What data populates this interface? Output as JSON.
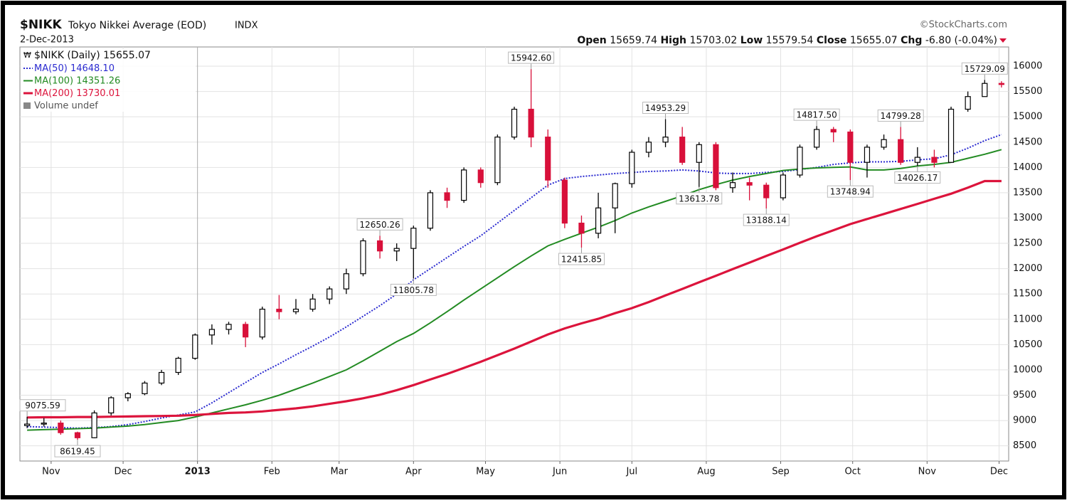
{
  "chart_data": {
    "type": "candlestick",
    "title": "$NIKK",
    "subtitle": "Tokyo Nikkei Average (EOD)",
    "exchange": "INDX",
    "date": "2-Dec-2013",
    "source": "©StockCharts.com",
    "ohlc_labels": [
      "Open",
      "High",
      "Low",
      "Close",
      "Chg"
    ],
    "change": "-6.80 (-0.04%)",
    "legend_name": "$NIKK (Daily)",
    "volume_label": "Volume undef",
    "up_color": "#000000",
    "down_color": "#d8103a",
    "grid": true,
    "x": [
      "2012-10-22",
      "2012-10-29",
      "2012-11-05",
      "2012-11-12",
      "2012-11-19",
      "2012-11-26",
      "2012-12-03",
      "2012-12-10",
      "2012-12-17",
      "2012-12-24",
      "2012-12-31",
      "2013-01-07",
      "2013-01-14",
      "2013-01-21",
      "2013-01-28",
      "2013-02-04",
      "2013-02-11",
      "2013-02-18",
      "2013-02-25",
      "2013-03-04",
      "2013-03-11",
      "2013-03-18",
      "2013-03-25",
      "2013-04-01",
      "2013-04-08",
      "2013-04-15",
      "2013-04-22",
      "2013-04-29",
      "2013-05-06",
      "2013-05-13",
      "2013-05-20",
      "2013-05-27",
      "2013-06-03",
      "2013-06-10",
      "2013-06-17",
      "2013-06-24",
      "2013-07-01",
      "2013-07-08",
      "2013-07-15",
      "2013-07-22",
      "2013-07-29",
      "2013-08-05",
      "2013-08-12",
      "2013-08-19",
      "2013-08-26",
      "2013-09-02",
      "2013-09-09",
      "2013-09-16",
      "2013-09-23",
      "2013-09-30",
      "2013-10-07",
      "2013-10-14",
      "2013-10-21",
      "2013-10-28",
      "2013-11-04",
      "2013-11-11",
      "2013-11-18",
      "2013-11-25",
      "2013-12-02"
    ],
    "opens": [
      8900,
      8930,
      8950,
      8760,
      8660,
      9150,
      9450,
      9530,
      9740,
      9950,
      10230,
      10690,
      10800,
      10900,
      10650,
      11200,
      11150,
      11200,
      11400,
      11600,
      11900,
      12550,
      12350,
      12400,
      12800,
      13500,
      13350,
      13950,
      13700,
      14600,
      15150,
      14600,
      13750,
      12900,
      12700,
      13200,
      13680,
      14300,
      14500,
      14600,
      14100,
      14450,
      13600,
      13700,
      13650,
      13400,
      13850,
      14400,
      14750,
      14700,
      14100,
      14400,
      14550,
      14100,
      14200,
      14100,
      15150,
      15400,
      15659.74
    ],
    "highs": [
      9075.59,
      9050,
      9000,
      8780,
      9200,
      9480,
      9560,
      9780,
      10000,
      10260,
      10720,
      10900,
      10950,
      10950,
      11250,
      11480,
      11400,
      11500,
      11650,
      12000,
      12600,
      12650.26,
      12500,
      12850,
      13550,
      13600,
      14000,
      14000,
      14650,
      15200,
      15942.6,
      14750,
      13800,
      13050,
      13500,
      13700,
      14350,
      14600,
      14953.29,
      14800,
      14500,
      14500,
      13900,
      13800,
      13700,
      13900,
      14450,
      14817.5,
      14800,
      14750,
      14450,
      14650,
      14799.28,
      14400,
      14350,
      15200,
      15500,
      15729.09,
      15703.02
    ],
    "lows": [
      8850,
      8880,
      8720,
      8619.45,
      8650,
      9100,
      9380,
      9500,
      9700,
      9900,
      10200,
      10500,
      10700,
      10450,
      10600,
      11000,
      11100,
      11150,
      11300,
      11500,
      11850,
      12200,
      12150,
      11805.78,
      12750,
      13200,
      13300,
      13600,
      13650,
      14550,
      14400,
      13600,
      12800,
      12415.85,
      12600,
      12700,
      13600,
      14200,
      14400,
      14050,
      13613.78,
      13550,
      13500,
      13350,
      13188.14,
      13350,
      13800,
      14350,
      14500,
      13748.94,
      13800,
      14350,
      14050,
      14026.17,
      14000,
      14100,
      15100,
      15400,
      15579.54
    ],
    "closes": [
      8930,
      8950,
      8760,
      8660,
      9150,
      9450,
      9530,
      9740,
      9950,
      10230,
      10690,
      10800,
      10900,
      10650,
      11200,
      11150,
      11200,
      11400,
      11600,
      11900,
      12550,
      12350,
      12400,
      12800,
      13500,
      13350,
      13950,
      13700,
      14600,
      15150,
      14600,
      13750,
      12900,
      12700,
      13200,
      13680,
      14300,
      14500,
      14600,
      14100,
      14450,
      13600,
      13700,
      13650,
      13400,
      13850,
      14400,
      14750,
      14700,
      14100,
      14400,
      14550,
      14100,
      14200,
      14100,
      15150,
      15400,
      15660,
      15655.07
    ],
    "series": [
      {
        "name": "MA(50)",
        "legend_label": "14648.10",
        "color": "#2b2bd0",
        "style": "dotted",
        "values": [
          8880,
          8870,
          8860,
          8850,
          8860,
          8880,
          8920,
          8980,
          9050,
          9110,
          9170,
          9350,
          9550,
          9750,
          9950,
          10120,
          10300,
          10470,
          10650,
          10850,
          11060,
          11270,
          11500,
          11780,
          12000,
          12220,
          12440,
          12650,
          12900,
          13150,
          13400,
          13650,
          13780,
          13820,
          13850,
          13880,
          13900,
          13920,
          13930,
          13950,
          13930,
          13890,
          13880,
          13880,
          13900,
          13920,
          13960,
          14000,
          14060,
          14090,
          14110,
          14110,
          14120,
          14150,
          14170,
          14250,
          14380,
          14530,
          14648.1
        ]
      },
      {
        "name": "MA(100)",
        "legend_label": "14351.26",
        "color": "#238b23",
        "style": "solid",
        "values": [
          8810,
          8820,
          8830,
          8840,
          8850,
          8870,
          8890,
          8920,
          8960,
          9000,
          9070,
          9150,
          9230,
          9310,
          9400,
          9500,
          9620,
          9740,
          9870,
          10000,
          10180,
          10370,
          10560,
          10720,
          10930,
          11150,
          11380,
          11600,
          11820,
          12040,
          12250,
          12450,
          12580,
          12700,
          12820,
          12950,
          13100,
          13220,
          13330,
          13440,
          13560,
          13660,
          13750,
          13820,
          13880,
          13940,
          13970,
          13990,
          14000,
          14010,
          13950,
          13950,
          13980,
          14030,
          14060,
          14100,
          14180,
          14260,
          14351.26
        ]
      },
      {
        "name": "MA(200)",
        "legend_label": "13730.01",
        "color": "#dc143c",
        "style": "thick",
        "values": [
          9060,
          9065,
          9065,
          9070,
          9070,
          9075,
          9080,
          9085,
          9090,
          9095,
          9110,
          9130,
          9150,
          9160,
          9180,
          9210,
          9240,
          9280,
          9330,
          9380,
          9440,
          9510,
          9600,
          9700,
          9810,
          9920,
          10040,
          10160,
          10290,
          10420,
          10560,
          10700,
          10820,
          10920,
          11010,
          11120,
          11220,
          11340,
          11470,
          11600,
          11730,
          11860,
          11990,
          12120,
          12250,
          12380,
          12510,
          12640,
          12760,
          12880,
          12980,
          13080,
          13180,
          13280,
          13380,
          13480,
          13600,
          13730.01,
          13730.01
        ]
      }
    ],
    "annotations": [
      {
        "x": "2012-10-22",
        "value": 9075.59
      },
      {
        "x": "2012-11-12",
        "value": 8619.45
      },
      {
        "x": "2013-03-18",
        "value": 12650.26
      },
      {
        "x": "2013-04-01",
        "value": 11805.78
      },
      {
        "x": "2013-05-20",
        "value": 15942.6,
        "label": "15942.60"
      },
      {
        "x": "2013-06-10",
        "value": 12415.85
      },
      {
        "x": "2013-07-15",
        "value": 14953.29
      },
      {
        "x": "2013-07-29",
        "value": 13613.78
      },
      {
        "x": "2013-08-26",
        "value": 13188.14
      },
      {
        "x": "2013-09-16",
        "value": 14817.5,
        "label": "14817.50"
      },
      {
        "x": "2013-09-30",
        "value": 13748.94
      },
      {
        "x": "2013-10-21",
        "value": 14799.28
      },
      {
        "x": "2013-10-28",
        "value": 14026.17
      },
      {
        "x": "2013-11-25",
        "value": 15729.09
      }
    ],
    "xlim": [
      "2012-10-19",
      "2013-12-05"
    ],
    "xticks": [
      {
        "value": "2012-11-01",
        "label": "Nov"
      },
      {
        "value": "2012-12-01",
        "label": "Dec"
      },
      {
        "value": "2013-01-01",
        "label": "2013"
      },
      {
        "value": "2013-02-01",
        "label": "Feb"
      },
      {
        "value": "2013-03-01",
        "label": "Mar"
      },
      {
        "value": "2013-04-01",
        "label": "Apr"
      },
      {
        "value": "2013-05-01",
        "label": "May"
      },
      {
        "value": "2013-06-01",
        "label": "Jun"
      },
      {
        "value": "2013-07-01",
        "label": "Jul"
      },
      {
        "value": "2013-08-01",
        "label": "Aug"
      },
      {
        "value": "2013-09-01",
        "label": "Sep"
      },
      {
        "value": "2013-10-01",
        "label": "Oct"
      },
      {
        "value": "2013-11-01",
        "label": "Nov"
      },
      {
        "value": "2013-12-01",
        "label": "Dec"
      }
    ],
    "ylim": [
      8200,
      16380
    ],
    "yticks": [
      8500,
      9000,
      9500,
      10000,
      10500,
      11000,
      11500,
      12000,
      12500,
      13000,
      13500,
      14000,
      14500,
      15000,
      15500,
      16000
    ]
  }
}
